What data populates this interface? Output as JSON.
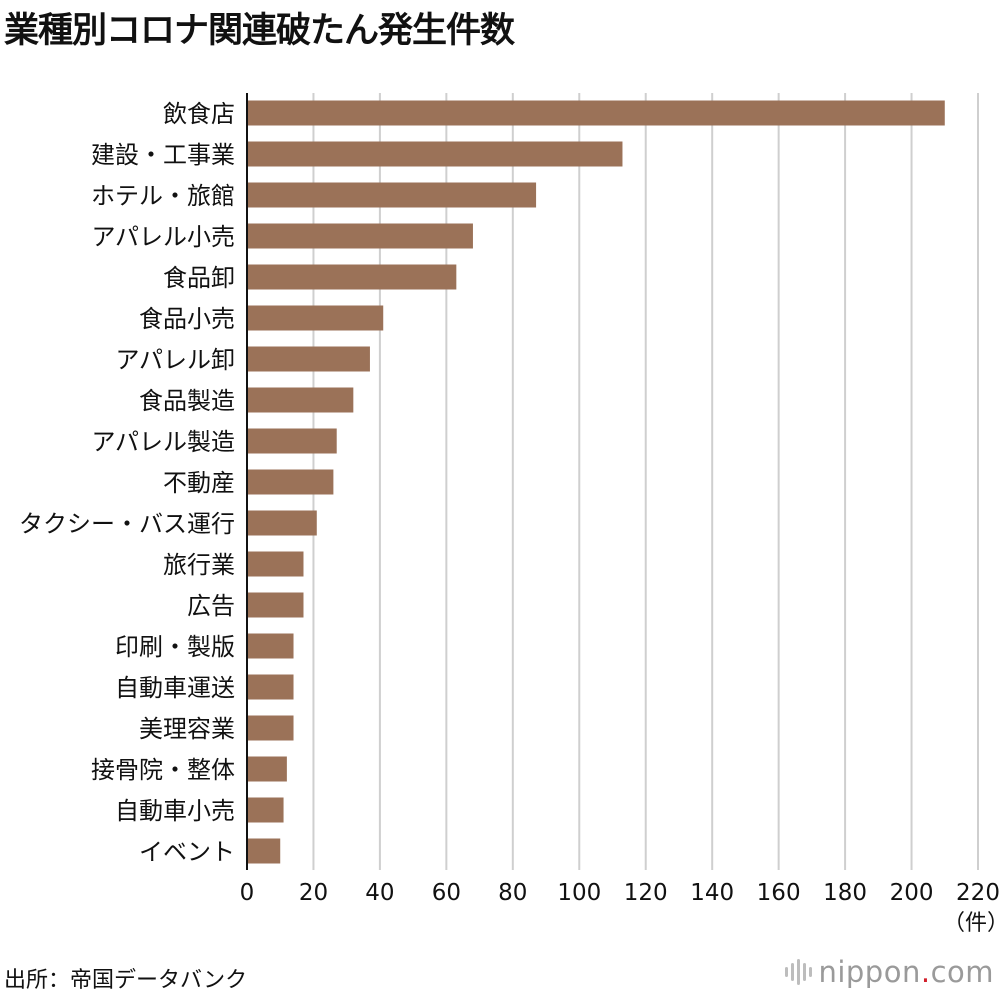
{
  "chart_data": {
    "type": "bar",
    "orientation": "horizontal",
    "title": "業種別コロナ関連破たん発生件数",
    "categories": [
      "飲食店",
      "建設・工事業",
      "ホテル・旅館",
      "アパレル小売",
      "食品卸",
      "食品小売",
      "アパレル卸",
      "食品製造",
      "アパレル製造",
      "不動産",
      "タクシー・バス運行",
      "旅行業",
      "広告",
      "印刷・製版",
      "自動車運送",
      "美理容業",
      "接骨院・整体",
      "自動車小売",
      "イベント"
    ],
    "values": [
      210,
      113,
      87,
      68,
      63,
      41,
      37,
      32,
      27,
      26,
      21,
      17,
      17,
      14,
      14,
      14,
      12,
      11,
      10
    ],
    "xlim": [
      0,
      220
    ],
    "xticks": [
      0,
      20,
      40,
      60,
      80,
      100,
      120,
      140,
      160,
      180,
      200,
      220
    ],
    "xunit": "（件）",
    "xlabel": "",
    "ylabel": "",
    "grid": "vertical",
    "bar_color": "#9b7258"
  },
  "source": "出所：帝国データバンク",
  "brand": {
    "name": "nippon",
    "dot": ".",
    "suffix": "com"
  }
}
